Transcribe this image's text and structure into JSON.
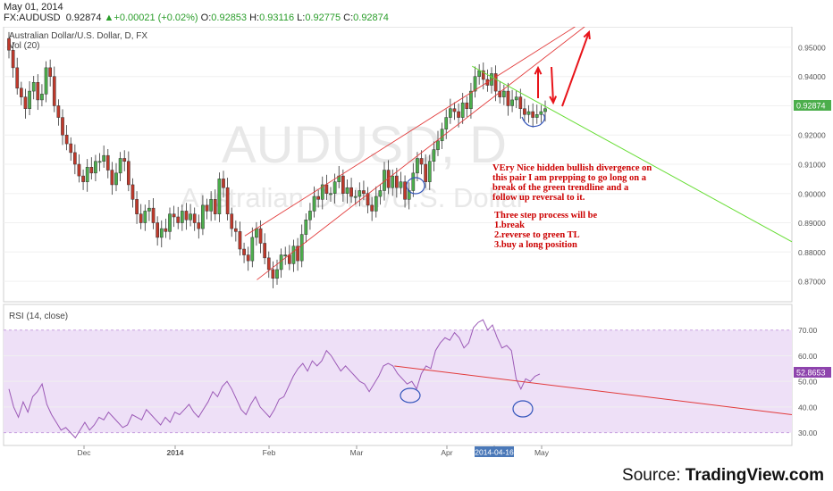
{
  "header": {
    "date": "May 01, 2014",
    "symbol": "FX:AUDUSD",
    "last": "0.92874",
    "change": "+0.00021 (+0.02%)",
    "open_label": "O:",
    "open": "0.92853",
    "high_label": "H:",
    "high": "0.93116",
    "low_label": "L:",
    "low": "0.92775",
    "close_label": "C:",
    "close": "0.92874"
  },
  "main_pane": {
    "title": "Australian Dollar/U.S. Dollar, D, FX",
    "volume_label": "Vol (20)",
    "watermark_symbol": "AUDUSD, D",
    "watermark_name": "Australian Dollar/U.S. Dollar",
    "price_tag": "0.92874",
    "annotation_paragraph": [
      "VEry Nice hidden bullish divergence on",
      "this pair I am prepping to go long on a",
      "break of the green trendline and a",
      "follow up reversal to it."
    ],
    "annotation_steps": [
      "Three step process will be",
      "1.break",
      "2.reverse to green TL",
      "3.buy a long position"
    ]
  },
  "rsi_pane": {
    "title": "RSI (14, close)",
    "value_tag": "52.8653"
  },
  "x_axis": {
    "labels": [
      "Dec",
      "2014",
      "Feb",
      "Mar",
      "Apr",
      "2014-04-16",
      "May"
    ]
  },
  "source_prefix": "Source: ",
  "source_name": "TradingView.com",
  "colors": {
    "up_candle": "#4cae4c",
    "down_candle": "#c0392b",
    "channel": "#e23b3b",
    "green_trendline": "#66dd33",
    "rsi_line": "#9b59b6",
    "rsi_band": "#eee0f7",
    "annotation_text": "#cc0000",
    "markup": "#3355bb"
  },
  "chart_data": [
    {
      "type": "candlestick",
      "title": "Australian Dollar/U.S. Dollar, D, FX",
      "y_ticks": [
        0.87,
        0.88,
        0.89,
        0.9,
        0.91,
        0.92,
        0.93,
        0.94,
        0.95
      ],
      "ylim": [
        0.863,
        0.957
      ],
      "x_labels": [
        "Dec",
        "2014",
        "Feb",
        "Mar",
        "Apr",
        "2014-04-16",
        "May"
      ],
      "approx_daily_closes": [
        0.949,
        0.943,
        0.936,
        0.933,
        0.929,
        0.935,
        0.938,
        0.932,
        0.934,
        0.943,
        0.94,
        0.93,
        0.926,
        0.92,
        0.917,
        0.914,
        0.91,
        0.906,
        0.904,
        0.909,
        0.907,
        0.911,
        0.911,
        0.913,
        0.908,
        0.903,
        0.907,
        0.912,
        0.911,
        0.903,
        0.898,
        0.893,
        0.89,
        0.894,
        0.895,
        0.89,
        0.885,
        0.888,
        0.887,
        0.893,
        0.892,
        0.89,
        0.894,
        0.891,
        0.893,
        0.89,
        0.888,
        0.896,
        0.894,
        0.898,
        0.893,
        0.905,
        0.902,
        0.893,
        0.888,
        0.887,
        0.881,
        0.879,
        0.877,
        0.885,
        0.888,
        0.883,
        0.878,
        0.874,
        0.871,
        0.874,
        0.879,
        0.879,
        0.876,
        0.882,
        0.877,
        0.886,
        0.891,
        0.894,
        0.899,
        0.898,
        0.903,
        0.9,
        0.9,
        0.904,
        0.906,
        0.9,
        0.902,
        0.899,
        0.899,
        0.901,
        0.9,
        0.896,
        0.894,
        0.899,
        0.901,
        0.908,
        0.902,
        0.906,
        0.902,
        0.904,
        0.898,
        0.901,
        0.907,
        0.912,
        0.91,
        0.904,
        0.911,
        0.915,
        0.918,
        0.922,
        0.926,
        0.929,
        0.928,
        0.926,
        0.931,
        0.929,
        0.935,
        0.94,
        0.942,
        0.939,
        0.937,
        0.941,
        0.935,
        0.933,
        0.935,
        0.93,
        0.932,
        0.933,
        0.929,
        0.927,
        0.928,
        0.926,
        0.927,
        0.928,
        0.929
      ],
      "last_close": 0.92874,
      "channel_lines": [
        {
          "name": "upper",
          "from": [
            "2014-01-24",
            0.8855
          ],
          "to": [
            "2014-05-20",
            0.9685
          ]
        },
        {
          "name": "lower",
          "from": [
            "2014-01-28",
            0.8705
          ],
          "to": [
            "2014-05-20",
            0.9685
          ]
        }
      ],
      "trendline_green": {
        "from": [
          "2014-04-09",
          0.9435
        ],
        "to": [
          "2014-06-25",
          0.8835
        ]
      },
      "arrows": [
        "up near 2014-05-01",
        "down near 2014-05-02",
        "up into 2014-05-10"
      ]
    },
    {
      "type": "line",
      "title": "RSI (14, close)",
      "y_ticks": [
        30,
        40,
        50,
        60,
        70
      ],
      "ylim": [
        25,
        80
      ],
      "band": [
        30,
        70
      ],
      "last_value": 52.8653,
      "approx_values": [
        47,
        40,
        36,
        42,
        38,
        44,
        46,
        49,
        41,
        37,
        34,
        31,
        32,
        30,
        28,
        31,
        34,
        31,
        33,
        36,
        35,
        38,
        36,
        34,
        32,
        33,
        37,
        36,
        35,
        39,
        37,
        35,
        33,
        36,
        34,
        38,
        37,
        39,
        41,
        38,
        36,
        39,
        42,
        46,
        44,
        48,
        50,
        47,
        43,
        39,
        37,
        41,
        44,
        40,
        38,
        36,
        39,
        43,
        44,
        48,
        52,
        55,
        57,
        54,
        58,
        56,
        58,
        62,
        60,
        57,
        54,
        56,
        54,
        52,
        50,
        49,
        46,
        49,
        52,
        56,
        57,
        56,
        53,
        51,
        49,
        50,
        47,
        53,
        56,
        55,
        62,
        65,
        67,
        66,
        69,
        67,
        63,
        65,
        71,
        73,
        74,
        70,
        72,
        67,
        63,
        64,
        62,
        51,
        47,
        51,
        50,
        52,
        52.9
      ],
      "trendline": {
        "from": [
          "2014-03-14",
          56.0
        ],
        "to": [
          "2014-06-25",
          37.0
        ]
      }
    }
  ]
}
